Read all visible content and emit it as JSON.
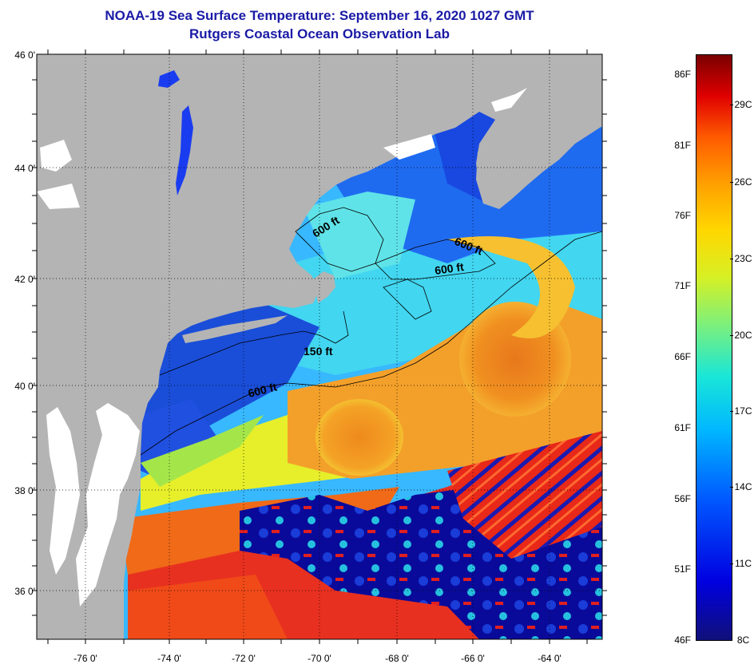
{
  "title_line1": "NOAA-19 Sea Surface Temperature:  September 16, 2020 1027 GMT",
  "title_line2": "Rutgers Coastal Ocean Observation Lab",
  "lat_labels": [
    "46 0'",
    "44 0'",
    "42 0'",
    "40 0'",
    "38 0'",
    "36 0'"
  ],
  "lon_labels": [
    "-76 0'",
    "-74 0'",
    "-72 0'",
    "-70 0'",
    "-68 0'",
    "-66 0'",
    "-64 0'"
  ],
  "contour_labels": [
    "600 ft",
    "600 ft",
    "600 ft",
    "150 ft",
    "600 ft"
  ],
  "colorbar_f": [
    "86F",
    "81F",
    "76F",
    "71F",
    "66F",
    "61F",
    "56F",
    "51F",
    "46F"
  ],
  "colorbar_c": [
    "29C",
    "26C",
    "23C",
    "20C",
    "17C",
    "14C",
    "11C",
    "8C"
  ],
  "colors": {
    "land": "#b4b4b4",
    "title": "#1a1aa6",
    "frame": "#000000"
  }
}
